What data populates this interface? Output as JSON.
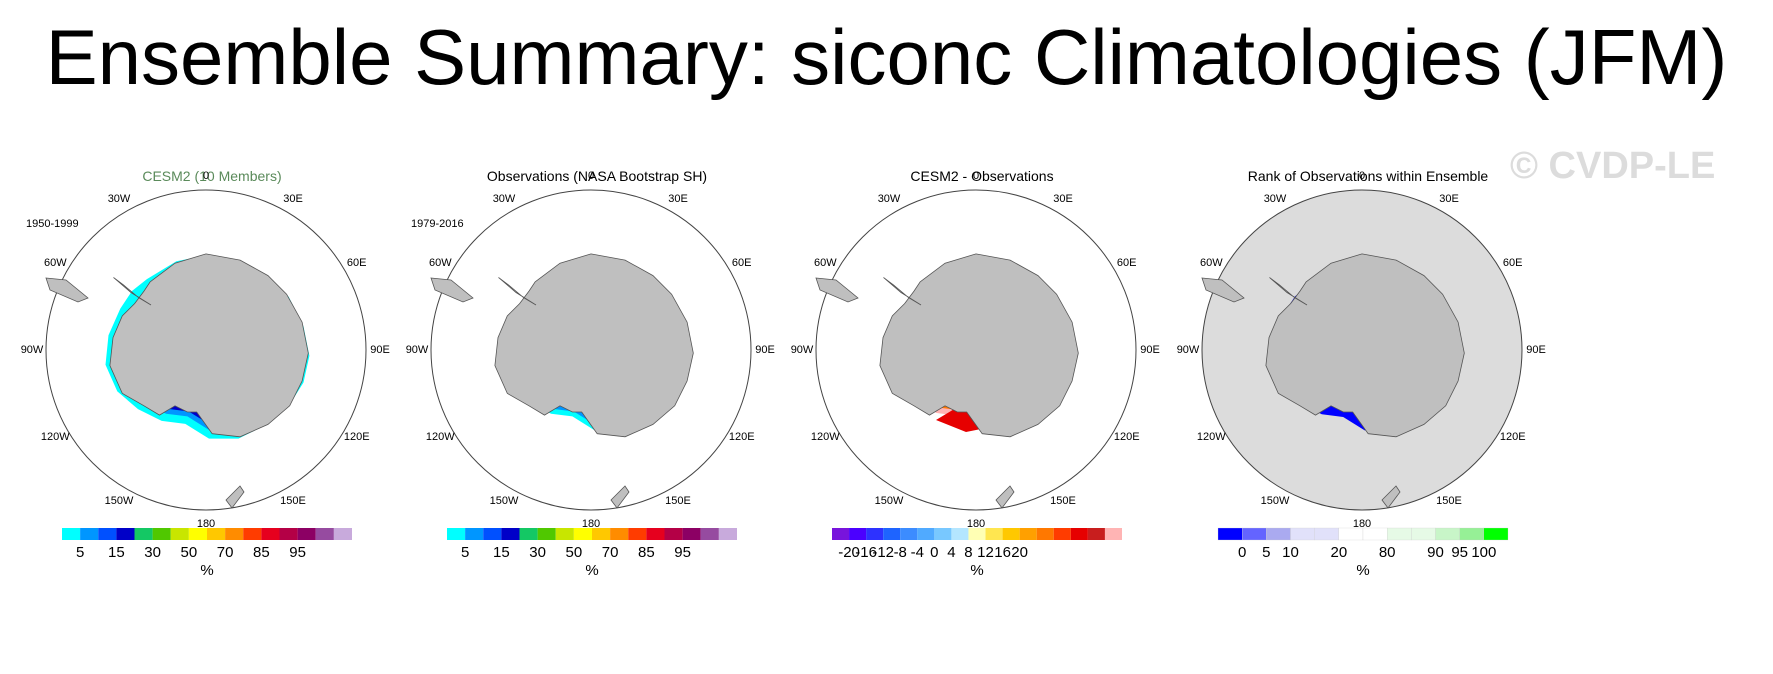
{
  "title": "Ensemble Summary: siconc Climatologies (JFM)",
  "watermark": "© CVDP-LE",
  "colors": {
    "land": "#bfbfbf",
    "ocean": "#ffffff",
    "rank_ocean": "#dcdcdc",
    "title_green": "#5a8a5a"
  },
  "longitude_labels": [
    "0",
    "30E",
    "60E",
    "90E",
    "120E",
    "150E",
    "180",
    "150W",
    "120W",
    "90W",
    "60W",
    "30W"
  ],
  "chart_data": [
    {
      "type": "heatmap",
      "title": "CESM2 (10 Members)",
      "period": "1950-1999",
      "unit": "%",
      "colorbar": {
        "colors": [
          "#00ffff",
          "#0096ff",
          "#0050ff",
          "#0000c8",
          "#14c864",
          "#50c800",
          "#c8e600",
          "#ffff00",
          "#ffc800",
          "#ff8c00",
          "#ff3c00",
          "#e6001e",
          "#b40046",
          "#8c0064",
          "#964ba0",
          "#c8aadc"
        ],
        "ticks": [
          "5",
          "15",
          "30",
          "50",
          "70",
          "85",
          "95"
        ],
        "tick_after_box": [
          1,
          3,
          5,
          7,
          9,
          11,
          13
        ]
      }
    },
    {
      "type": "heatmap",
      "title": "Observations (NASA Bootstrap SH)",
      "period": "1979-2016",
      "unit": "%",
      "colorbar": {
        "colors": [
          "#00ffff",
          "#0096ff",
          "#0050ff",
          "#0000c8",
          "#14c864",
          "#50c800",
          "#c8e600",
          "#ffff00",
          "#ffc800",
          "#ff8c00",
          "#ff3c00",
          "#e6001e",
          "#b40046",
          "#8c0064",
          "#964ba0",
          "#c8aadc"
        ],
        "ticks": [
          "5",
          "15",
          "30",
          "50",
          "70",
          "85",
          "95"
        ],
        "tick_after_box": [
          1,
          3,
          5,
          7,
          9,
          11,
          13
        ]
      }
    },
    {
      "type": "heatmap",
      "title": "CESM2 - Observations",
      "unit": "%",
      "colorbar": {
        "colors": [
          "#7814dc",
          "#4b00ff",
          "#2d32ff",
          "#1e64ff",
          "#3c8cff",
          "#50aaff",
          "#78c8ff",
          "#b4e6ff",
          "#ffffb4",
          "#ffe650",
          "#ffc800",
          "#ffa000",
          "#ff7800",
          "#ff3c00",
          "#e60000",
          "#c81e1e",
          "#ffb4b4"
        ],
        "ticks": [
          "-20",
          "-16",
          "-12",
          "-8",
          "-4",
          "0",
          "4",
          "8",
          "12",
          "16",
          "20"
        ],
        "tick_after_box": [
          1,
          2,
          3,
          4,
          5,
          6,
          7,
          8,
          9,
          10,
          11
        ]
      }
    },
    {
      "type": "heatmap",
      "title": "Rank of Observations within Ensemble",
      "unit": "%",
      "colorbar": {
        "colors": [
          "#0000ff",
          "#6464ff",
          "#aaaaf0",
          "#e1e1fa",
          "#e1e1fa",
          "#ffffff",
          "#ffffff",
          "#e6fae6",
          "#e6fae6",
          "#c8f5c8",
          "#96f096",
          "#00ff00"
        ],
        "ticks": [
          "0",
          "5",
          "10",
          "20",
          "80",
          "90",
          "95",
          "100"
        ],
        "tick_after_box": [
          1,
          2,
          3,
          5,
          7,
          9,
          10,
          11
        ]
      }
    }
  ]
}
